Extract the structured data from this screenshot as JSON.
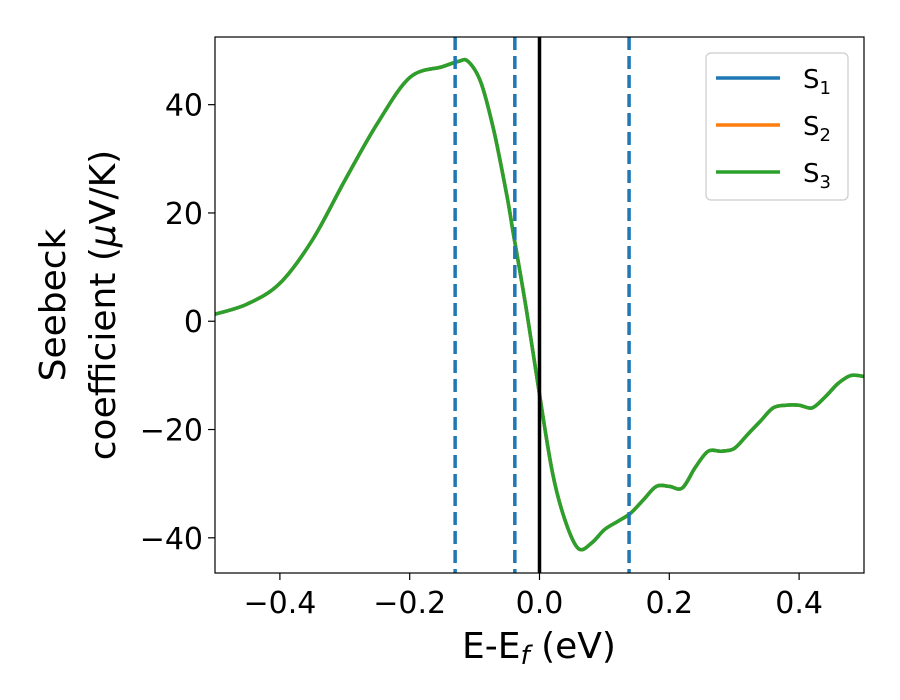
{
  "chart_data": {
    "type": "line",
    "title": "",
    "xlabel": {
      "base": "E-E",
      "sub": "f",
      "tail": " (eV)"
    },
    "ylabel": {
      "line1": "Seebeck",
      "line2_pre": "coefficient  (",
      "mu": "μ",
      "line2_post": "V/K)"
    },
    "xlim": [
      -0.5,
      0.5
    ],
    "ylim": [
      -46.5,
      52.5
    ],
    "xticks": [
      -0.4,
      -0.2,
      0.0,
      0.2,
      0.4
    ],
    "xtick_labels": [
      "−0.4",
      "−0.2",
      "0.0",
      "0.2",
      "0.4"
    ],
    "yticks": [
      -40,
      -20,
      0,
      20,
      40
    ],
    "ytick_labels": [
      "−40",
      "−20",
      "0",
      "20",
      "40"
    ],
    "grid": false,
    "legend_position": "top-right",
    "legend": [
      {
        "base": "S",
        "sub": "1",
        "color": "#1f77b4"
      },
      {
        "base": "S",
        "sub": "2",
        "color": "#ff7f0e"
      },
      {
        "base": "S",
        "sub": "3",
        "color": "#2ca02c"
      }
    ],
    "x": [
      -0.5,
      -0.45,
      -0.4,
      -0.35,
      -0.3,
      -0.25,
      -0.2,
      -0.15,
      -0.125,
      -0.11,
      -0.09,
      -0.07,
      -0.05,
      -0.04,
      -0.02,
      0.0,
      0.02,
      0.04,
      0.06,
      0.08,
      0.1,
      0.12,
      0.14,
      0.16,
      0.18,
      0.2,
      0.22,
      0.24,
      0.26,
      0.28,
      0.3,
      0.32,
      0.34,
      0.36,
      0.38,
      0.4,
      0.42,
      0.44,
      0.46,
      0.48,
      0.5
    ],
    "series": [
      {
        "name": "S₁",
        "color": "#1f77b4",
        "values": [
          1.3,
          3.2,
          7.0,
          15.0,
          26.0,
          36.5,
          45.0,
          47.0,
          48.0,
          48.0,
          44.0,
          35.0,
          23.0,
          16.0,
          2.0,
          -13.5,
          -28.0,
          -37.0,
          -42.0,
          -41.0,
          -38.5,
          -37.0,
          -35.5,
          -33.0,
          -30.5,
          -30.5,
          -30.8,
          -27.0,
          -24.0,
          -24.0,
          -23.5,
          -21.0,
          -18.5,
          -16.0,
          -15.5,
          -15.5,
          -16.0,
          -14.0,
          -11.5,
          -10.0,
          -10.2
        ]
      },
      {
        "name": "S₂",
        "color": "#ff7f0e",
        "values": [
          1.3,
          3.2,
          7.0,
          15.0,
          26.0,
          36.5,
          45.0,
          47.0,
          48.0,
          48.0,
          44.0,
          35.0,
          23.0,
          16.0,
          2.0,
          -13.5,
          -28.0,
          -37.0,
          -42.0,
          -41.0,
          -38.5,
          -37.0,
          -35.5,
          -33.0,
          -30.5,
          -30.5,
          -30.8,
          -27.0,
          -24.0,
          -24.0,
          -23.5,
          -21.0,
          -18.5,
          -16.0,
          -15.5,
          -15.5,
          -16.0,
          -14.0,
          -11.5,
          -10.0,
          -10.2
        ]
      },
      {
        "name": "S₃",
        "color": "#2ca02c",
        "values": [
          1.3,
          3.2,
          7.0,
          15.0,
          26.0,
          36.5,
          45.0,
          47.0,
          48.0,
          48.0,
          44.0,
          35.0,
          23.0,
          16.0,
          2.0,
          -13.5,
          -28.0,
          -37.0,
          -42.0,
          -41.0,
          -38.5,
          -37.0,
          -35.5,
          -33.0,
          -30.5,
          -30.5,
          -30.8,
          -27.0,
          -24.0,
          -24.0,
          -23.5,
          -21.0,
          -18.5,
          -16.0,
          -15.5,
          -15.5,
          -16.0,
          -14.0,
          -11.5,
          -10.0,
          -10.2
        ]
      }
    ],
    "vlines": [
      {
        "x": -0.13,
        "style": "dashed",
        "color": "#1f77b4"
      },
      {
        "x": -0.038,
        "style": "dashed",
        "color": "#1f77b4"
      },
      {
        "x": 0.138,
        "style": "dashed",
        "color": "#1f77b4"
      },
      {
        "x": 0.0,
        "style": "solid",
        "color": "#000000"
      }
    ]
  }
}
